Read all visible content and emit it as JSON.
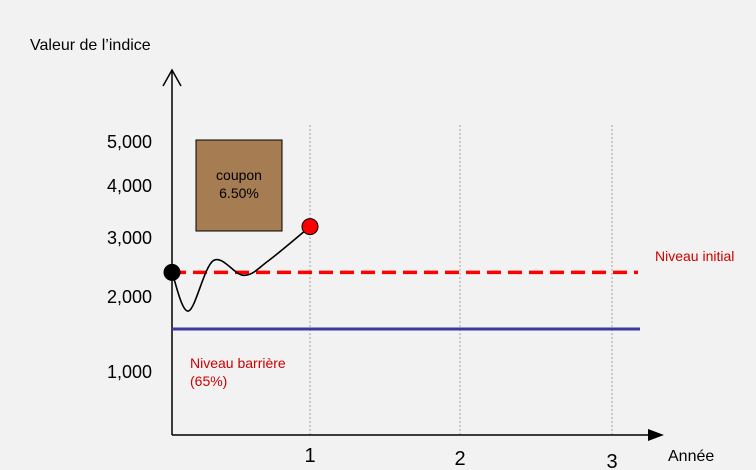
{
  "chart_data": {
    "type": "line",
    "ylabel": "Valeur de l’indice",
    "xlabel": "Année",
    "y_ticks": [
      "5,000",
      "4,000",
      "3,000",
      "2,000",
      "1,000"
    ],
    "x_ticks": [
      "1",
      "2",
      "3"
    ],
    "series": [
      {
        "name": "",
        "points": [
          {
            "x": 0.0,
            "y": 2400
          },
          {
            "x": 0.12,
            "y": 1800
          },
          {
            "x": 0.3,
            "y": 2600
          },
          {
            "x": 0.52,
            "y": 2350
          },
          {
            "x": 0.7,
            "y": 2600
          },
          {
            "x": 1.0,
            "y": 3200
          }
        ]
      }
    ],
    "reference_lines": [
      {
        "label": "Niveau initial",
        "y": 2400,
        "style": "dashed",
        "color": "#ff0000"
      },
      {
        "label": "Niveau barrière\n(65%)",
        "y": 1560,
        "style": "solid",
        "color": "#3a3aa0"
      }
    ],
    "annotation_box": {
      "label": "coupon\n6.50%",
      "fill": "#a67c52"
    },
    "markers": [
      {
        "x": 0,
        "y": 2400,
        "color": "#000000"
      },
      {
        "x": 1,
        "y": 3200,
        "color": "#ff0000"
      }
    ],
    "grid": {
      "vertical_dotted_at_years": true
    },
    "colors": {
      "axis": "#000000",
      "grid": "#a0a0a0",
      "text": "#000000",
      "red_text": "#cc0000"
    }
  }
}
